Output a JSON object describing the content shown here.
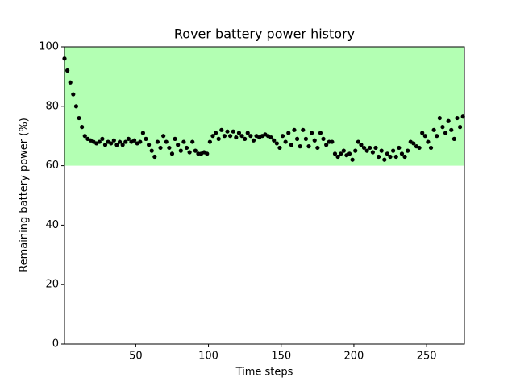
{
  "chart_data": {
    "type": "scatter",
    "title": "Rover battery power history",
    "x_label": "Time steps",
    "y_label": "Remaining battery power (%)",
    "x": [
      1,
      3,
      5,
      7,
      9,
      11,
      13,
      15,
      17,
      19,
      21,
      23,
      25,
      27,
      29,
      31,
      33,
      35,
      37,
      39,
      41,
      43,
      45,
      47,
      49,
      51,
      53,
      55,
      57,
      59,
      61,
      63,
      65,
      67,
      69,
      71,
      73,
      75,
      77,
      79,
      81,
      83,
      85,
      87,
      89,
      91,
      93,
      95,
      97,
      99,
      101,
      103,
      105,
      107,
      109,
      111,
      113,
      115,
      117,
      119,
      121,
      123,
      125,
      127,
      129,
      131,
      133,
      135,
      137,
      139,
      141,
      143,
      145,
      147,
      149,
      151,
      153,
      155,
      157,
      159,
      161,
      163,
      165,
      167,
      169,
      171,
      173,
      175,
      177,
      179,
      181,
      183,
      185,
      187,
      189,
      191,
      193,
      195,
      197,
      199,
      201,
      203,
      205,
      207,
      209,
      211,
      213,
      215,
      217,
      219,
      221,
      223,
      225,
      227,
      229,
      231,
      233,
      235,
      237,
      239,
      241,
      243,
      245,
      247,
      249,
      251,
      253,
      255,
      257,
      259,
      261,
      263,
      265,
      267,
      269,
      271,
      273,
      275
    ],
    "values": [
      96,
      92,
      88,
      84,
      80,
      76,
      73,
      70,
      69,
      68.5,
      68,
      67.5,
      68,
      69,
      67,
      68,
      67.5,
      68.5,
      67,
      68,
      67,
      68,
      69,
      68,
      68.5,
      67.5,
      68,
      71,
      69,
      67,
      65,
      63,
      68,
      66,
      70,
      68,
      66,
      64,
      69,
      67,
      65,
      68,
      66,
      64.5,
      68,
      65,
      64,
      64,
      64.5,
      64,
      68,
      70,
      71,
      69,
      72,
      70,
      71.5,
      70,
      71.5,
      69.5,
      71,
      70,
      69,
      71,
      70,
      68.5,
      70,
      69.5,
      70,
      70.5,
      70,
      69.5,
      68.5,
      67.5,
      66,
      70,
      68,
      71,
      67,
      72,
      69,
      66.5,
      72,
      69,
      66.5,
      71,
      68.5,
      66,
      71,
      69,
      67,
      68,
      68,
      64,
      63,
      64,
      65,
      63.5,
      64,
      62,
      65,
      68,
      67,
      66,
      65,
      66,
      64.5,
      66,
      63,
      65,
      62,
      64,
      63,
      65,
      63,
      66,
      64,
      63,
      65,
      68,
      67.5,
      66.5,
      66,
      71,
      70,
      68,
      66,
      72,
      70,
      76,
      73,
      71,
      75,
      72,
      69,
      76,
      73,
      76.5
    ],
    "color": "#000000",
    "band": [
      60,
      100
    ],
    "band_color": "#b3ffb3",
    "xlim": [
      1,
      276
    ],
    "ylim": [
      0,
      100
    ],
    "xticks": [
      50,
      100,
      150,
      200,
      250
    ],
    "yticks": [
      0,
      20,
      40,
      60,
      80,
      100
    ]
  }
}
